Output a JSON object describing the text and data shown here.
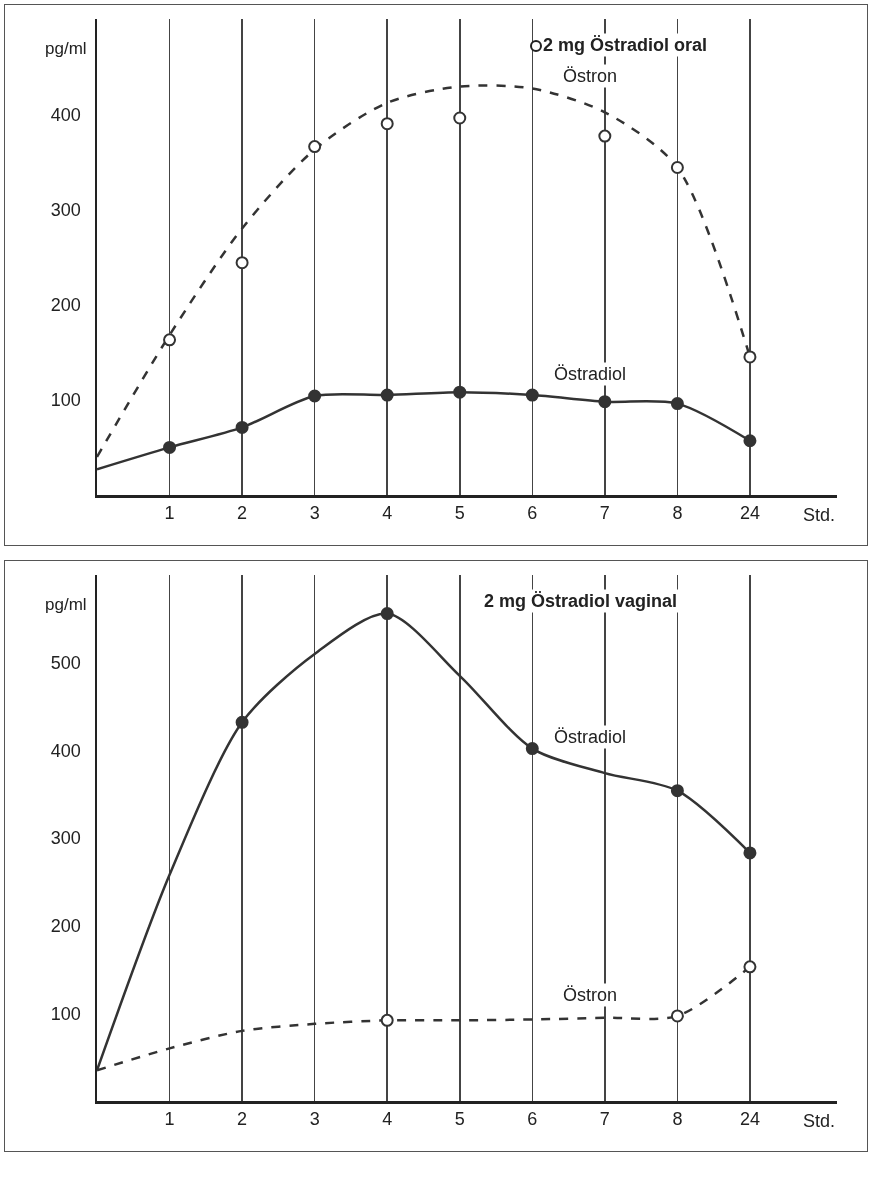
{
  "chart_data": [
    {
      "type": "line",
      "title": "2 mg Östradiol oral",
      "ylabel": "pg/ml",
      "xlabel": "Std.",
      "categories": [
        null,
        "1",
        "2",
        "3",
        "4",
        "5",
        "6",
        "7",
        "8",
        "24"
      ],
      "ylim": [
        0,
        500
      ],
      "yticks": [
        100,
        200,
        300,
        400
      ],
      "grid": "x",
      "series": [
        {
          "name": "Östron",
          "type": "line",
          "color": "#333333",
          "line_style": "dashed",
          "marker": "none",
          "values": [
            40,
            168,
            280,
            363,
            412,
            429,
            427,
            402,
            344,
            145
          ]
        },
        {
          "type": "scatter",
          "color": "#333333",
          "colors": [
            "#ffffff",
            "#ffffff",
            "#ffffff",
            "#ffffff",
            "#ffffff",
            "#ffffff",
            "#ffffff",
            "#ffffff",
            "#ffffff",
            "#ffffff"
          ],
          "marker": "circle",
          "values": [
            null,
            163,
            244,
            366,
            390,
            396,
            null,
            377,
            344,
            145
          ]
        },
        {
          "name": "Östradiol",
          "type": "line",
          "color": "#333333",
          "line_style": "solid",
          "marker": "none",
          "values": [
            27,
            50,
            71,
            104,
            105,
            108,
            105,
            98,
            96,
            57
          ]
        },
        {
          "type": "scatter",
          "color": "#333333",
          "marker": "circle",
          "values": [
            null,
            50,
            71,
            104,
            105,
            108,
            105,
            98,
            96,
            57
          ]
        }
      ]
    },
    {
      "type": "line",
      "title": "2 mg Östradiol vaginal",
      "ylabel": "pg/ml",
      "xlabel": "Std.",
      "categories": [
        null,
        "1",
        "2",
        "3",
        "4",
        "5",
        "6",
        "7",
        "8",
        "24"
      ],
      "ylim": [
        0,
        600
      ],
      "yticks": [
        100,
        200,
        300,
        400,
        500
      ],
      "grid": "x",
      "series": [
        {
          "name": "Östradiol",
          "type": "line",
          "color": "#333333",
          "line_style": "solid",
          "marker": "none",
          "values": [
            35,
            258,
            432,
            510,
            556,
            485,
            402,
            374,
            354,
            283
          ]
        },
        {
          "type": "scatter",
          "color": "#333333",
          "marker": "circle",
          "values": [
            null,
            null,
            432,
            null,
            556,
            null,
            402,
            null,
            354,
            283
          ]
        },
        {
          "name": "Östron",
          "type": "line",
          "color": "#333333",
          "line_style": "dashed",
          "marker": "none",
          "values": [
            35,
            60,
            80,
            88,
            92,
            92,
            93,
            95,
            97,
            153
          ]
        },
        {
          "type": "scatter",
          "color": "#333333",
          "colors": [
            "#ffffff",
            "#ffffff",
            "#ffffff",
            "#ffffff",
            "#ffffff",
            "#ffffff",
            "#ffffff",
            "#ffffff",
            "#ffffff",
            "#ffffff"
          ],
          "marker": "circle",
          "values": [
            null,
            null,
            null,
            null,
            92,
            null,
            null,
            null,
            97,
            153
          ]
        }
      ]
    }
  ]
}
